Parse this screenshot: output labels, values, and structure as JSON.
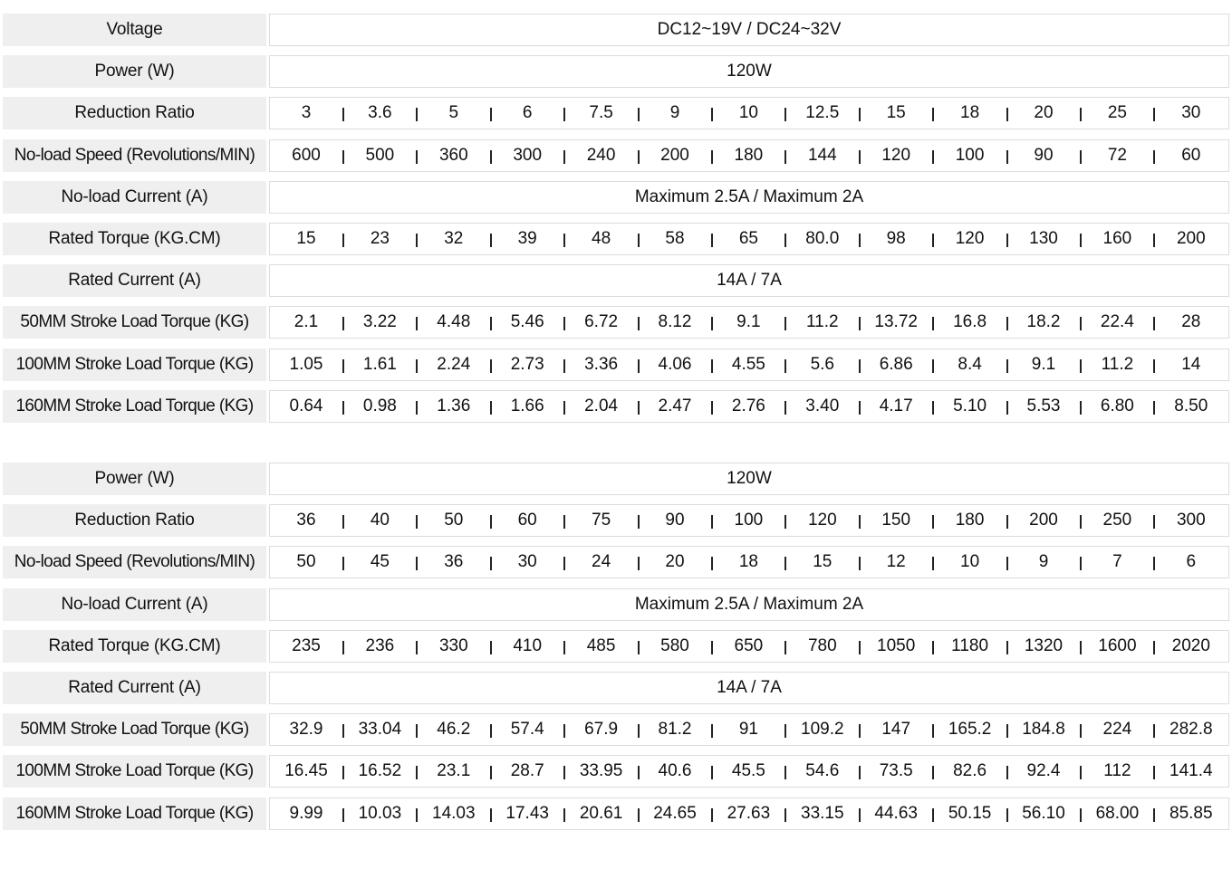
{
  "table1": {
    "rows": [
      {
        "label": "Voltage",
        "span": "DC12~19V / DC24~32V"
      },
      {
        "label": "Power (W)",
        "span": "120W"
      },
      {
        "label": "Reduction Ratio",
        "values": [
          "3",
          "3.6",
          "5",
          "6",
          "7.5",
          "9",
          "10",
          "12.5",
          "15",
          "18",
          "20",
          "25",
          "30"
        ]
      },
      {
        "label": "No-load Speed (Revolutions/MIN)",
        "values": [
          "600",
          "500",
          "360",
          "300",
          "240",
          "200",
          "180",
          "144",
          "120",
          "100",
          "90",
          "72",
          "60"
        ]
      },
      {
        "label": "No-load Current (A)",
        "span": "Maximum 2.5A / Maximum 2A"
      },
      {
        "label": "Rated Torque (KG.CM)",
        "values": [
          "15",
          "23",
          "32",
          "39",
          "48",
          "58",
          "65",
          "80.0",
          "98",
          "120",
          "130",
          "160",
          "200"
        ]
      },
      {
        "label": "Rated Current (A)",
        "span": "14A / 7A"
      },
      {
        "label": "50MM Stroke Load Torque (KG)",
        "values": [
          "2.1",
          "3.22",
          "4.48",
          "5.46",
          "6.72",
          "8.12",
          "9.1",
          "11.2",
          "13.72",
          "16.8",
          "18.2",
          "22.4",
          "28"
        ]
      },
      {
        "label": "100MM Stroke Load Torque (KG)",
        "values": [
          "1.05",
          "1.61",
          "2.24",
          "2.73",
          "3.36",
          "4.06",
          "4.55",
          "5.6",
          "6.86",
          "8.4",
          "9.1",
          "11.2",
          "14"
        ]
      },
      {
        "label": "160MM Stroke Load Torque (KG)",
        "values": [
          "0.64",
          "0.98",
          "1.36",
          "1.66",
          "2.04",
          "2.47",
          "2.76",
          "3.40",
          "4.17",
          "5.10",
          "5.53",
          "6.80",
          "8.50"
        ]
      }
    ]
  },
  "table2": {
    "rows": [
      {
        "label": "Power (W)",
        "span": "120W"
      },
      {
        "label": "Reduction Ratio",
        "values": [
          "36",
          "40",
          "50",
          "60",
          "75",
          "90",
          "100",
          "120",
          "150",
          "180",
          "200",
          "250",
          "300"
        ]
      },
      {
        "label": "No-load Speed (Revolutions/MIN)",
        "values": [
          "50",
          "45",
          "36",
          "30",
          "24",
          "20",
          "18",
          "15",
          "12",
          "10",
          "9",
          "7",
          "6"
        ]
      },
      {
        "label": "No-load Current (A)",
        "span": "Maximum 2.5A / Maximum 2A"
      },
      {
        "label": "Rated Torque (KG.CM)",
        "values": [
          "235",
          "236",
          "330",
          "410",
          "485",
          "580",
          "650",
          "780",
          "1050",
          "1180",
          "1320",
          "1600",
          "2020"
        ]
      },
      {
        "label": "Rated Current (A)",
        "span": "14A / 7A"
      },
      {
        "label": "50MM Stroke Load Torque (KG)",
        "values": [
          "32.9",
          "33.04",
          "46.2",
          "57.4",
          "67.9",
          "81.2",
          "91",
          "109.2",
          "147",
          "165.2",
          "184.8",
          "224",
          "282.8"
        ]
      },
      {
        "label": "100MM Stroke Load Torque (KG)",
        "values": [
          "16.45",
          "16.52",
          "23.1",
          "28.7",
          "33.95",
          "40.6",
          "45.5",
          "54.6",
          "73.5",
          "82.6",
          "92.4",
          "112",
          "141.4"
        ]
      },
      {
        "label": "160MM Stroke Load Torque (KG)",
        "values": [
          "9.99",
          "10.03",
          "14.03",
          "17.43",
          "20.61",
          "24.65",
          "27.63",
          "33.15",
          "44.63",
          "50.15",
          "56.10",
          "68.00",
          "85.85"
        ]
      }
    ]
  }
}
